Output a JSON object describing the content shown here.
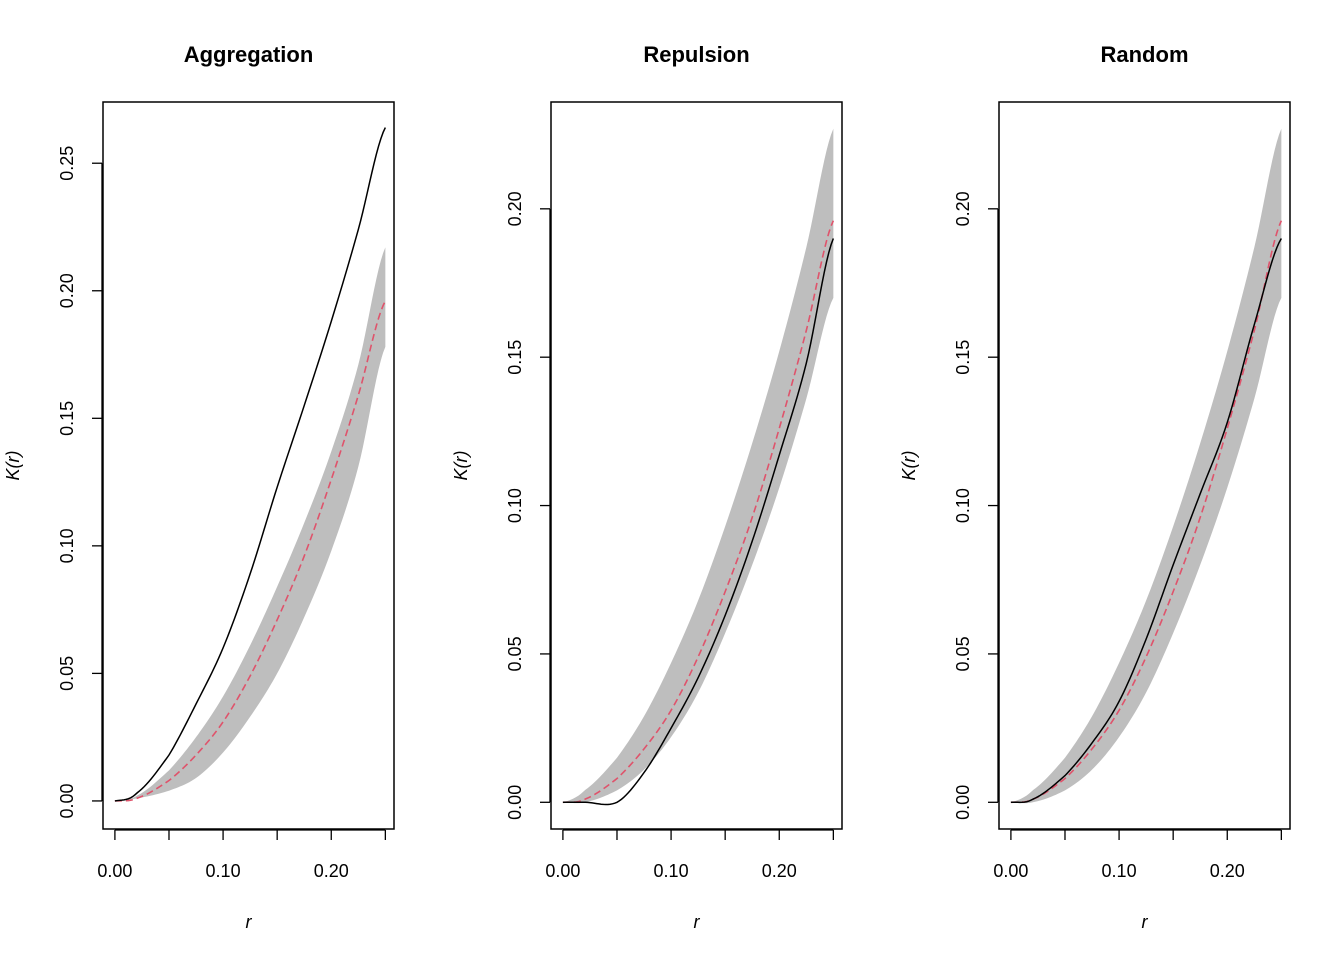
{
  "chart_data": [
    {
      "type": "line",
      "title": "Aggregation",
      "xlabel": "r",
      "ylabel": "K(r)",
      "xlim": [
        -0.011,
        0.258
      ],
      "ylim": [
        -0.011,
        0.274
      ],
      "x_ticks": [
        0.0,
        0.05,
        0.1,
        0.15,
        0.2,
        0.25
      ],
      "x_tick_labels": [
        "0.00",
        "",
        "0.10",
        "",
        "0.20",
        ""
      ],
      "y_ticks": [
        0.0,
        0.05,
        0.1,
        0.15,
        0.2,
        0.25
      ],
      "y_tick_labels": [
        "0.00",
        "0.05",
        "0.10",
        "0.15",
        "0.20",
        "0.25"
      ],
      "x": [
        0.0,
        0.02,
        0.05,
        0.075,
        0.1,
        0.125,
        0.15,
        0.175,
        0.2,
        0.225,
        0.25
      ],
      "series": [
        {
          "role": "envelope_lower",
          "color": "#bebebe",
          "values": [
            0.0,
            0.001,
            0.004,
            0.009,
            0.019,
            0.033,
            0.05,
            0.072,
            0.098,
            0.131,
            0.178
          ]
        },
        {
          "role": "envelope_upper",
          "color": "#bebebe",
          "values": [
            0.0,
            0.002,
            0.012,
            0.025,
            0.041,
            0.061,
            0.084,
            0.109,
            0.137,
            0.171,
            0.217
          ]
        },
        {
          "role": "theoretical",
          "color": "#df536b",
          "style": "dashed",
          "values": [
            0.0,
            0.001,
            0.008,
            0.018,
            0.031,
            0.049,
            0.071,
            0.096,
            0.126,
            0.159,
            0.196
          ]
        },
        {
          "role": "observed",
          "color": "#000000",
          "style": "solid",
          "values": [
            0.0,
            0.003,
            0.018,
            0.038,
            0.06,
            0.089,
            0.123,
            0.155,
            0.188,
            0.224,
            0.264
          ]
        }
      ]
    },
    {
      "type": "line",
      "title": "Repulsion",
      "xlabel": "r",
      "ylabel": "K(r)",
      "xlim": [
        -0.011,
        0.258
      ],
      "ylim": [
        -0.009,
        0.236
      ],
      "x_ticks": [
        0.0,
        0.05,
        0.1,
        0.15,
        0.2,
        0.25
      ],
      "x_tick_labels": [
        "0.00",
        "",
        "0.10",
        "",
        "0.20",
        ""
      ],
      "y_ticks": [
        0.0,
        0.05,
        0.1,
        0.15,
        0.2
      ],
      "y_tick_labels": [
        "0.00",
        "0.05",
        "0.10",
        "0.15",
        "0.20"
      ],
      "x": [
        0.0,
        0.02,
        0.05,
        0.075,
        0.1,
        0.125,
        0.15,
        0.175,
        0.2,
        0.225,
        0.25
      ],
      "series": [
        {
          "role": "envelope_lower",
          "color": "#bebebe",
          "values": [
            0.0,
            0.0,
            0.004,
            0.011,
            0.022,
            0.037,
            0.057,
            0.08,
            0.106,
            0.136,
            0.17
          ]
        },
        {
          "role": "envelope_upper",
          "color": "#bebebe",
          "values": [
            0.0,
            0.004,
            0.015,
            0.029,
            0.047,
            0.068,
            0.093,
            0.121,
            0.152,
            0.187,
            0.227
          ]
        },
        {
          "role": "theoretical",
          "color": "#df536b",
          "style": "dashed",
          "values": [
            0.0,
            0.001,
            0.008,
            0.018,
            0.031,
            0.049,
            0.071,
            0.096,
            0.126,
            0.159,
            0.196
          ]
        },
        {
          "role": "observed",
          "color": "#000000",
          "style": "solid",
          "values": [
            0.0,
            0.0,
            0.0,
            0.01,
            0.025,
            0.042,
            0.063,
            0.088,
            0.117,
            0.148,
            0.19
          ]
        }
      ]
    },
    {
      "type": "line",
      "title": "Random",
      "xlabel": "r",
      "ylabel": "K(r)",
      "xlim": [
        -0.011,
        0.258
      ],
      "ylim": [
        -0.009,
        0.236
      ],
      "x_ticks": [
        0.0,
        0.05,
        0.1,
        0.15,
        0.2,
        0.25
      ],
      "x_tick_labels": [
        "0.00",
        "",
        "0.10",
        "",
        "0.20",
        ""
      ],
      "y_ticks": [
        0.0,
        0.05,
        0.1,
        0.15,
        0.2
      ],
      "y_tick_labels": [
        "0.00",
        "0.05",
        "0.10",
        "0.15",
        "0.20"
      ],
      "x": [
        0.0,
        0.02,
        0.05,
        0.075,
        0.1,
        0.125,
        0.15,
        0.175,
        0.2,
        0.225,
        0.25
      ],
      "series": [
        {
          "role": "envelope_lower",
          "color": "#bebebe",
          "values": [
            0.0,
            0.0,
            0.004,
            0.011,
            0.022,
            0.037,
            0.057,
            0.08,
            0.106,
            0.136,
            0.17
          ]
        },
        {
          "role": "envelope_upper",
          "color": "#bebebe",
          "values": [
            0.0,
            0.004,
            0.015,
            0.029,
            0.047,
            0.068,
            0.093,
            0.121,
            0.152,
            0.187,
            0.227
          ]
        },
        {
          "role": "theoretical",
          "color": "#df536b",
          "style": "dashed",
          "values": [
            0.0,
            0.001,
            0.008,
            0.018,
            0.031,
            0.049,
            0.071,
            0.096,
            0.126,
            0.159,
            0.196
          ]
        },
        {
          "role": "observed",
          "color": "#000000",
          "style": "solid",
          "values": [
            0.0,
            0.001,
            0.009,
            0.02,
            0.034,
            0.055,
            0.08,
            0.104,
            0.128,
            0.161,
            0.19
          ]
        }
      ]
    }
  ]
}
